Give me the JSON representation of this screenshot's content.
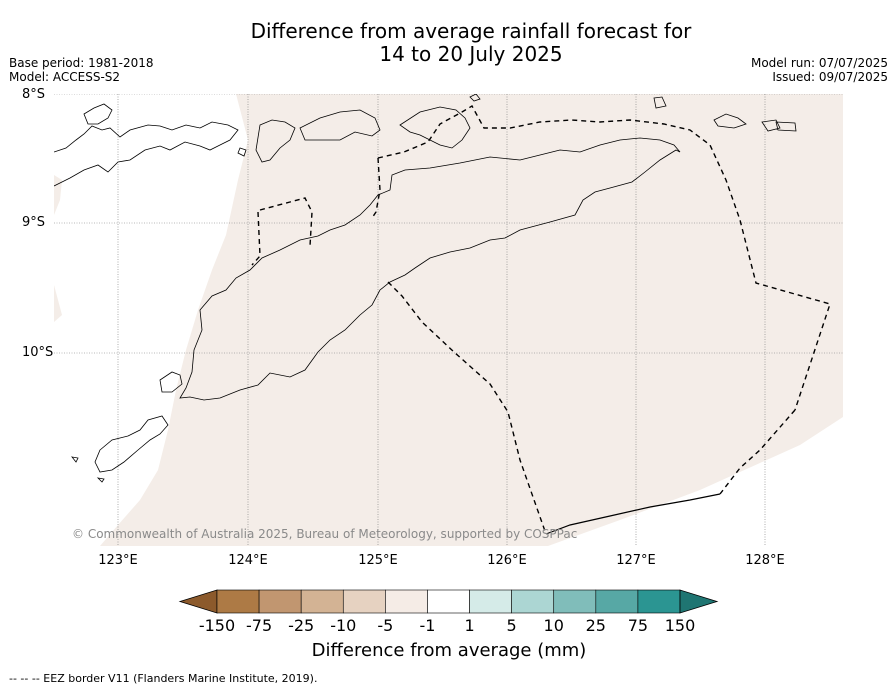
{
  "title_line1": "Difference from average rainfall forecast for",
  "title_line2": "14 to 20 July 2025",
  "meta": {
    "base_period": "Base period: 1981-2018",
    "model": "Model: ACCESS-S2",
    "model_run": "Model run: 07/07/2025",
    "issued": "Issued: 09/07/2025"
  },
  "latitudes": [
    "8°S",
    "9°S",
    "10°S"
  ],
  "longitudes": [
    "123°E",
    "124°E",
    "125°E",
    "126°E",
    "127°E",
    "128°E"
  ],
  "copyright": "© Commonwealth of Australia 2025, Bureau of Meteorology, supported by COSPPac",
  "colorbar": {
    "title": "Difference from average (mm)",
    "labels": [
      "-150",
      "-75",
      "-25",
      "-10",
      "-5",
      "-1",
      "1",
      "5",
      "10",
      "25",
      "75",
      "150"
    ],
    "colors": [
      "#8c5a2c",
      "#ad7a45",
      "#c19670",
      "#d3b394",
      "#e6d2c1",
      "#f5ece6",
      "#ffffff",
      "#d5ebe8",
      "#acd6d3",
      "#80bdba",
      "#57a8a5",
      "#2b9592",
      "#1f7572"
    ]
  },
  "map_fill": "#f4ede8",
  "footnote": "-- -- -- EEZ border V11 (Flanders Marine Institute, 2019)."
}
